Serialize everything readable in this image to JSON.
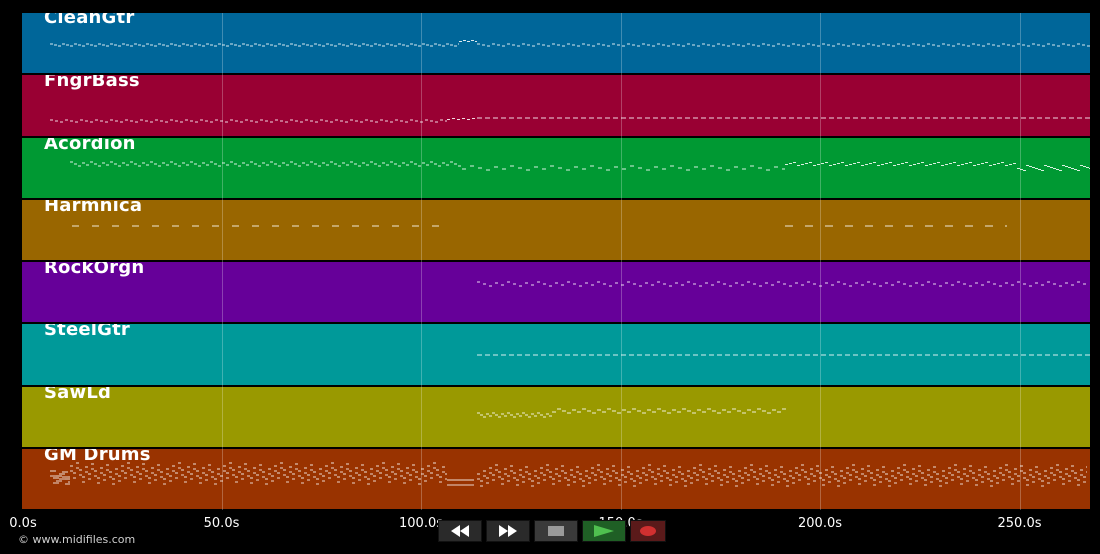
{
  "tracks": [
    {
      "name": "CleanGtr",
      "color": "#006699"
    },
    {
      "name": "FngrBass",
      "color": "#990033"
    },
    {
      "name": "Acordion",
      "color": "#009933"
    },
    {
      "name": "Harmnica",
      "color": "#996600"
    },
    {
      "name": "RockOrgn",
      "color": "#660099"
    },
    {
      "name": "SteelGtr",
      "color": "#009999"
    },
    {
      "name": "SawLd",
      "color": "#999900"
    },
    {
      "name": "GM Drums",
      "color": "#993300"
    }
  ],
  "timeline": {
    "ticks": [
      "0.0s",
      "50.0s",
      "100.0s",
      "150.0s",
      "200.0s",
      "250.0s"
    ],
    "tick_seconds": [
      0,
      50,
      100,
      150,
      200,
      250
    ],
    "duration_seconds": 267
  },
  "footer": {
    "copyright": "© www.midifiles.com"
  },
  "transport": {
    "rewind_icon": "rewind-icon",
    "fast_forward_icon": "fast-forward-icon",
    "stop_icon": "stop-icon",
    "play_icon": "play-icon",
    "record_icon": "record-icon"
  }
}
